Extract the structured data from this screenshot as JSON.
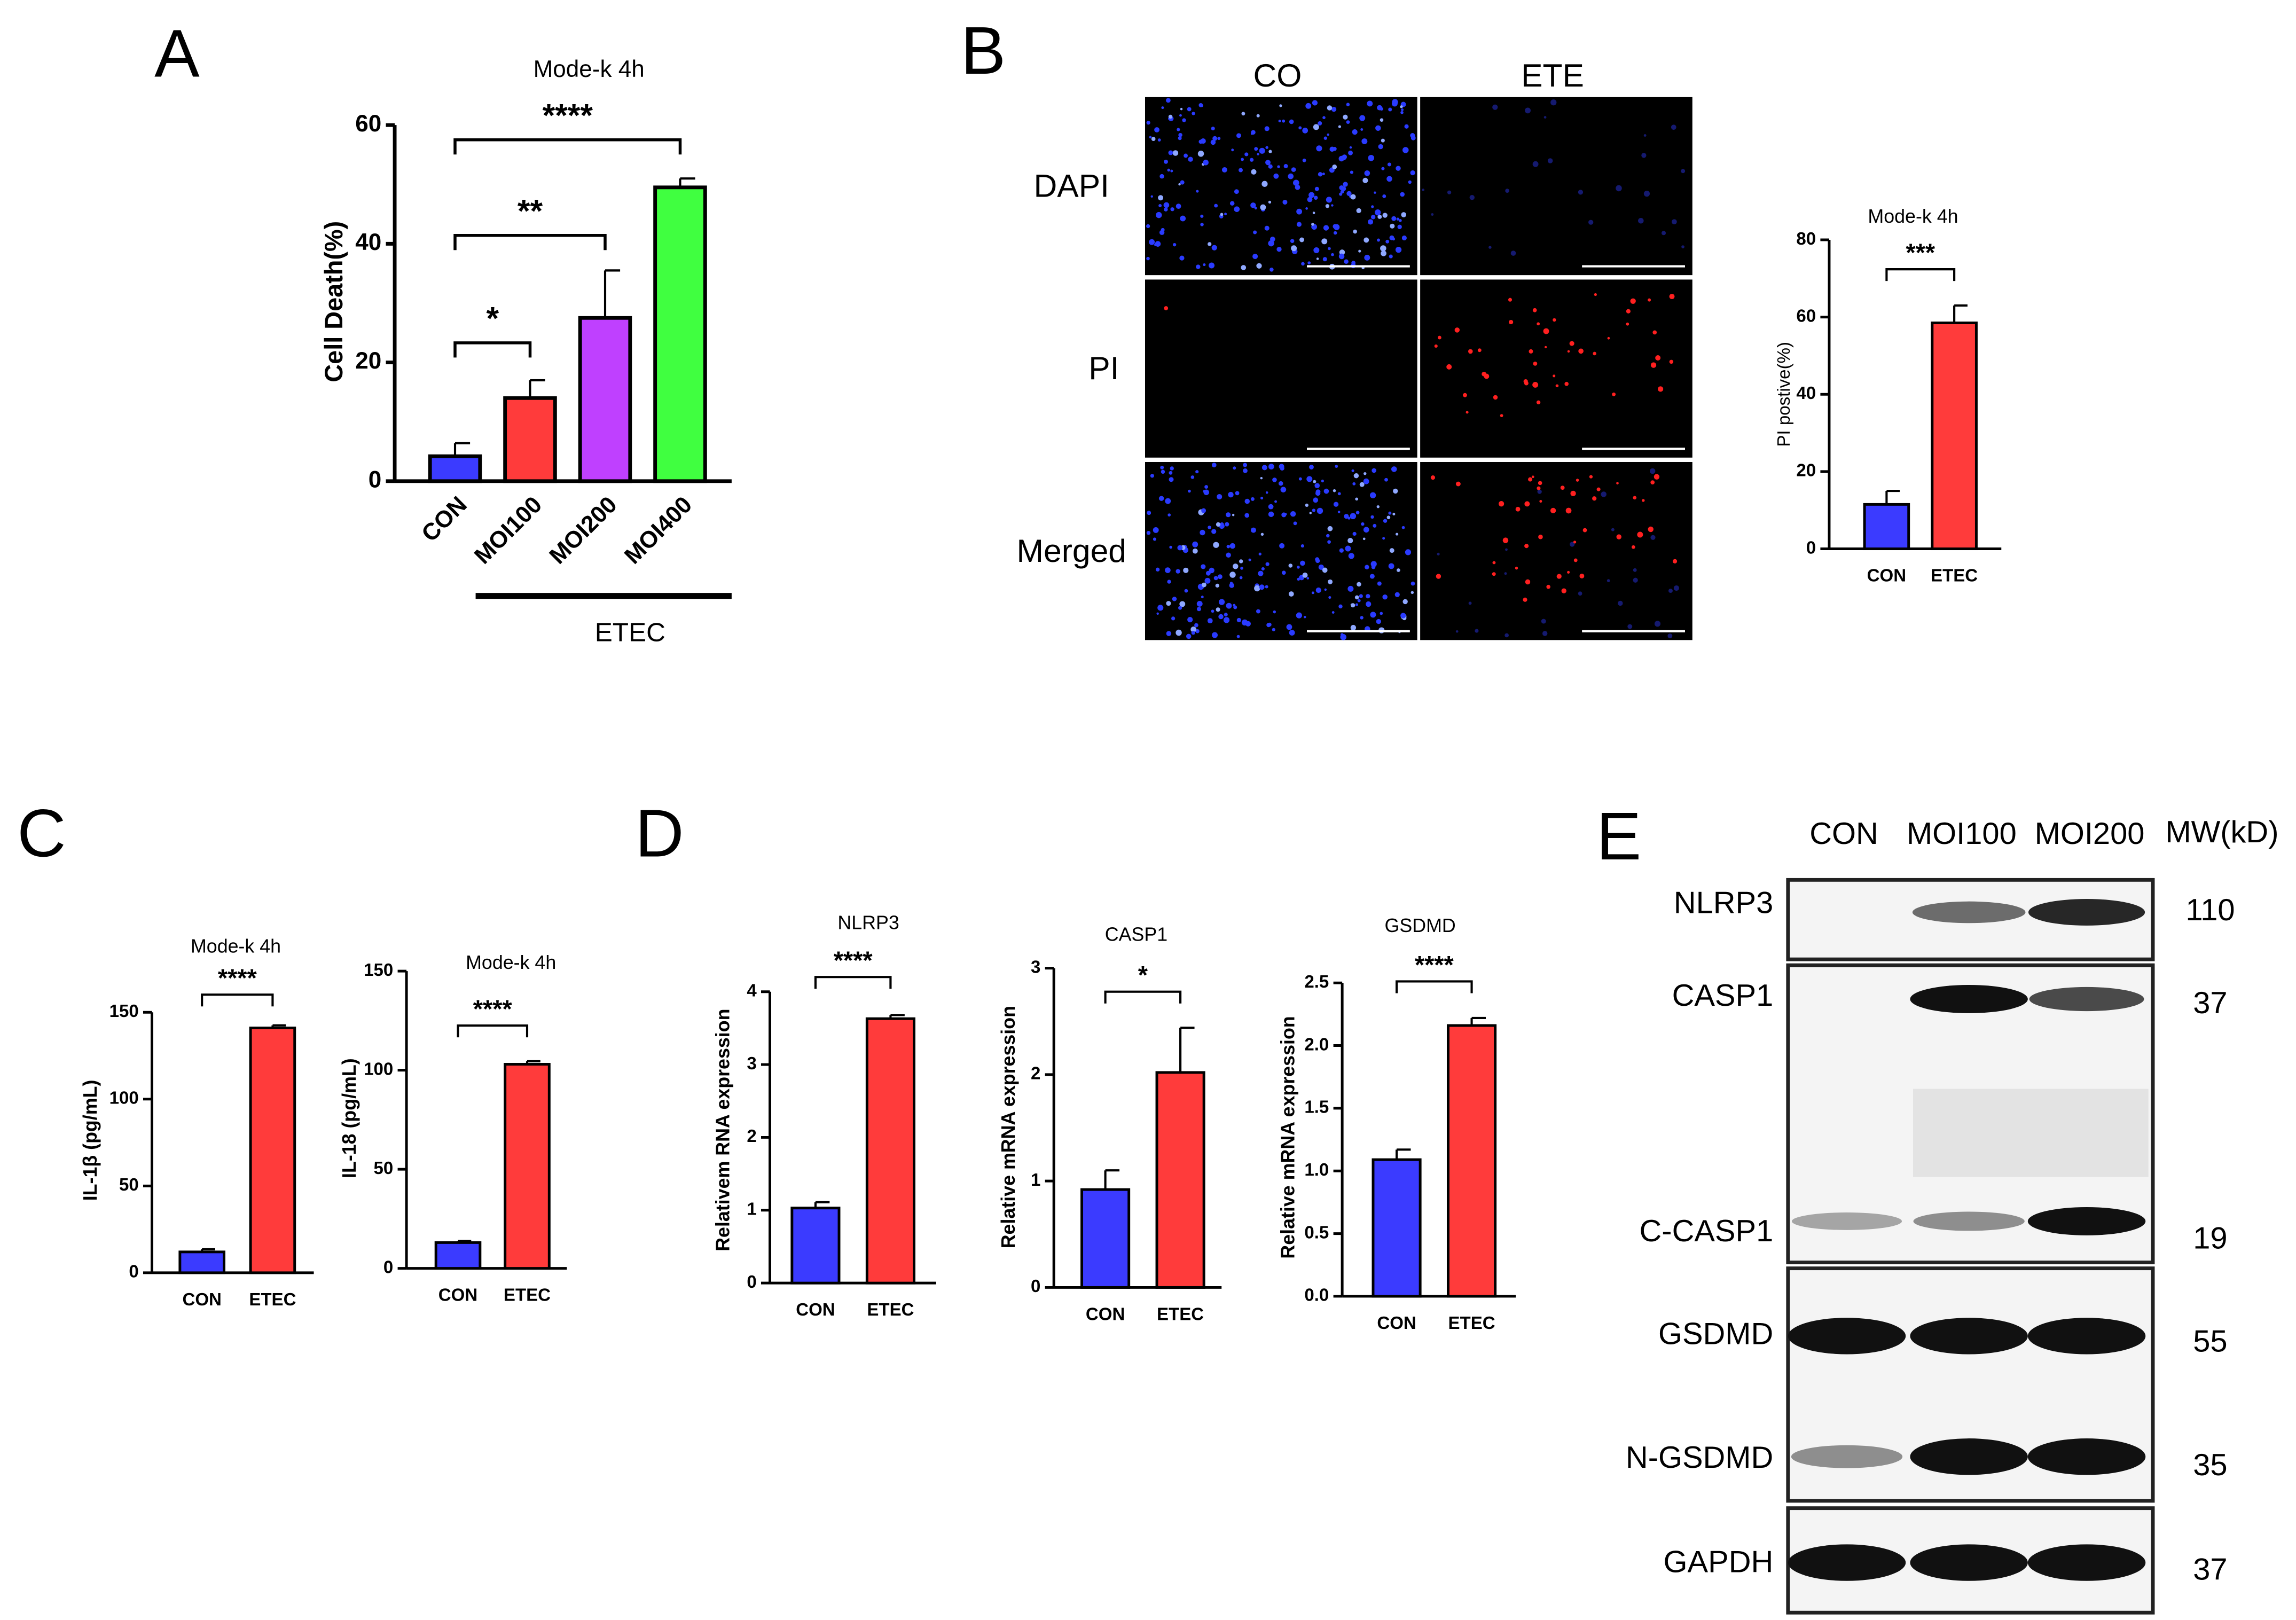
{
  "panel_labels": [
    "A",
    "B",
    "C",
    "D",
    "E"
  ],
  "chart_data": [
    {
      "type": "bar",
      "title": "Mode-k 4h",
      "y_label": "Cell Death(%)",
      "categories": [
        "CON",
        "MOI100",
        "MOI200",
        "MOI400"
      ],
      "values": [
        4.2,
        14,
        27.5,
        49.5
      ],
      "errors": [
        2.2,
        3,
        8,
        1.5
      ],
      "colors": [
        "#3b3bff",
        "#ff3b3b",
        "#bf40ff",
        "#40ff40"
      ],
      "ylim": [
        0,
        60
      ],
      "yticks": [
        0,
        20,
        40,
        60
      ],
      "significance": [
        "*",
        "**",
        "****"
      ],
      "group_label": "ETEC"
    },
    {
      "type": "bar",
      "title": "Mode-k 4h",
      "y_label": "PI postive(%)",
      "categories": [
        "CON",
        "ETEC"
      ],
      "values": [
        11.5,
        58.5
      ],
      "errors": [
        3.5,
        4.5
      ],
      "colors": [
        "#3b3bff",
        "#ff3b3b"
      ],
      "ylim": [
        0,
        80
      ],
      "yticks": [
        0,
        20,
        40,
        60,
        80
      ],
      "significance": [
        "***"
      ]
    },
    {
      "type": "bar",
      "title": "Mode-k 4h",
      "y_label": "IL-1β  (pg/mL)",
      "categories": [
        "CON",
        "ETEC"
      ],
      "values": [
        12,
        141
      ],
      "errors": [
        1.5,
        1.5
      ],
      "colors": [
        "#3b3bff",
        "#ff3b3b"
      ],
      "ylim": [
        0,
        150
      ],
      "yticks": [
        0,
        50,
        100,
        150
      ],
      "significance": [
        "****"
      ]
    },
    {
      "type": "bar",
      "title": "Mode-k 4h",
      "y_label": "IL-18  (pg/mL)",
      "categories": [
        "CON",
        "ETEC"
      ],
      "values": [
        13,
        103
      ],
      "errors": [
        0.8,
        1.5
      ],
      "colors": [
        "#3b3bff",
        "#ff3b3b"
      ],
      "ylim": [
        0,
        150
      ],
      "yticks": [
        0,
        50,
        100,
        150
      ],
      "significance": [
        "****"
      ]
    },
    {
      "type": "bar",
      "title": "NLRP3",
      "y_label": "Relativem RNA expression",
      "categories": [
        "CON",
        "ETEC"
      ],
      "values": [
        1.03,
        3.63
      ],
      "errors": [
        0.08,
        0.05
      ],
      "colors": [
        "#3b3bff",
        "#ff3b3b"
      ],
      "ylim": [
        0,
        4
      ],
      "yticks": [
        0,
        1,
        2,
        3,
        4
      ],
      "significance": [
        "****"
      ]
    },
    {
      "type": "bar",
      "title": "CASP1",
      "y_label": "Relative mRNA expression",
      "categories": [
        "CON",
        "ETEC"
      ],
      "values": [
        0.92,
        2.02
      ],
      "errors": [
        0.18,
        0.42
      ],
      "colors": [
        "#3b3bff",
        "#ff3b3b"
      ],
      "ylim": [
        0,
        3
      ],
      "yticks": [
        0,
        1,
        2,
        3
      ],
      "significance": [
        "*"
      ]
    },
    {
      "type": "bar",
      "title": "GSDMD",
      "y_label": "Relative mRNA expression",
      "categories": [
        "CON",
        "ETEC"
      ],
      "values": [
        1.09,
        2.16
      ],
      "errors": [
        0.08,
        0.06
      ],
      "colors": [
        "#3b3bff",
        "#ff3b3b"
      ],
      "ylim": [
        0,
        2.5
      ],
      "yticks": [
        {
          "value": 0,
          "label": "0.0"
        },
        0.5,
        {
          "value": 1,
          "label": "1.0"
        },
        1.5,
        {
          "value": 2,
          "label": "2.0"
        },
        2.5
      ],
      "significance": [
        "****"
      ]
    }
  ],
  "microscopy": {
    "columns": [
      "CO",
      "ETE"
    ],
    "rows": [
      "DAPI",
      "PI",
      "Merged"
    ]
  },
  "western_blot": {
    "columns": [
      "CON",
      "MOI100",
      "MOI200"
    ],
    "mw_header": "MW(kD)",
    "bands": [
      {
        "label": "NLRP3",
        "mw": 110
      },
      {
        "label": "CASP1",
        "mw": 37
      },
      {
        "label": "C-CASP1",
        "mw": 19
      },
      {
        "label": "GSDMD",
        "mw": 55
      },
      {
        "label": "N-GSDMD",
        "mw": 35
      },
      {
        "label": "GAPDH",
        "mw": 37
      }
    ]
  }
}
